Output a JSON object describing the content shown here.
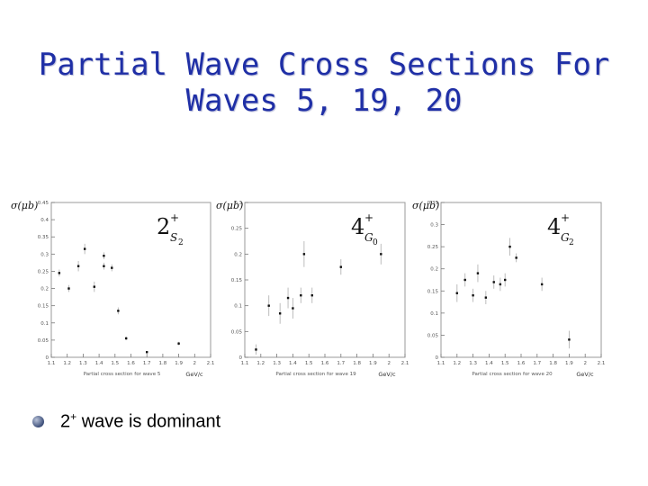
{
  "slide": {
    "title_line1": "Partial Wave Cross Sections For",
    "title_line2": "Waves 5, 19, 20",
    "bullet": {
      "prefix": "2",
      "sup": "+",
      "rest": " wave is dominant"
    }
  },
  "chart_data": [
    {
      "type": "scatter",
      "title": "Partial cross section for wave 5",
      "ylabel": "σ(μb)",
      "xunit": "GeV/c",
      "label": {
        "main": "2",
        "sup": "+",
        "sub": "S",
        "subsub": "2"
      },
      "xlim": [
        1.1,
        2.1
      ],
      "ylim": [
        0,
        0.45
      ],
      "xticks": [
        "1.1",
        "1.2",
        "1.3",
        "1.4",
        "1.5",
        "1.6",
        "1.7",
        "1.8",
        "1.9",
        "2",
        "2.1"
      ],
      "yticks": [
        "0",
        "0.05",
        "0.1",
        "0.15",
        "0.2",
        "0.25",
        "0.3",
        "0.35",
        "0.4",
        "0.45"
      ],
      "points": [
        {
          "x": 1.15,
          "y": 0.245,
          "err": 0.01
        },
        {
          "x": 1.21,
          "y": 0.2,
          "err": 0.01
        },
        {
          "x": 1.27,
          "y": 0.265,
          "err": 0.015
        },
        {
          "x": 1.31,
          "y": 0.315,
          "err": 0.015
        },
        {
          "x": 1.37,
          "y": 0.205,
          "err": 0.015
        },
        {
          "x": 1.43,
          "y": 0.295,
          "err": 0.01
        },
        {
          "x": 1.43,
          "y": 0.265,
          "err": 0.01
        },
        {
          "x": 1.48,
          "y": 0.26,
          "err": 0.01
        },
        {
          "x": 1.52,
          "y": 0.135,
          "err": 0.01
        },
        {
          "x": 1.57,
          "y": 0.055,
          "err": 0.005
        },
        {
          "x": 1.7,
          "y": 0.015,
          "err": 0.003
        },
        {
          "x": 1.9,
          "y": 0.04,
          "err": 0.005
        }
      ]
    },
    {
      "type": "scatter",
      "title": "Partial cross section for wave 19",
      "ylabel": "σ(μb)",
      "xunit": "GeV/c",
      "label": {
        "main": "4",
        "sup": "+",
        "sub": "G",
        "subsub": "0"
      },
      "xlim": [
        1.1,
        2.1
      ],
      "ylim": [
        0,
        0.3
      ],
      "xticks": [
        "1.1",
        "1.2",
        "1.3",
        "1.4",
        "1.5",
        "1.6",
        "1.7",
        "1.8",
        "1.9",
        "2",
        "2.1"
      ],
      "yticks": [
        "0",
        "0.05",
        "0.1",
        "0.15",
        "0.2",
        "0.25",
        "0.3"
      ],
      "points": [
        {
          "x": 1.17,
          "y": 0.015,
          "err": 0.01
        },
        {
          "x": 1.25,
          "y": 0.1,
          "err": 0.02
        },
        {
          "x": 1.32,
          "y": 0.085,
          "err": 0.02
        },
        {
          "x": 1.37,
          "y": 0.115,
          "err": 0.02
        },
        {
          "x": 1.4,
          "y": 0.095,
          "err": 0.02
        },
        {
          "x": 1.45,
          "y": 0.12,
          "err": 0.015
        },
        {
          "x": 1.47,
          "y": 0.2,
          "err": 0.025
        },
        {
          "x": 1.52,
          "y": 0.12,
          "err": 0.015
        },
        {
          "x": 1.7,
          "y": 0.175,
          "err": 0.015
        },
        {
          "x": 1.95,
          "y": 0.2,
          "err": 0.02
        }
      ]
    },
    {
      "type": "scatter",
      "title": "Partial cross section for wave 20",
      "ylabel": "σ(μb)",
      "xunit": "GeV/c",
      "label": {
        "main": "4",
        "sup": "+",
        "sub": "G",
        "subsub": "2"
      },
      "xlim": [
        1.1,
        2.1
      ],
      "ylim": [
        0,
        0.35
      ],
      "xticks": [
        "1.1",
        "1.2",
        "1.3",
        "1.4",
        "1.5",
        "1.6",
        "1.7",
        "1.8",
        "1.9",
        "2",
        "2.1"
      ],
      "yticks": [
        "0",
        "0.05",
        "0.1",
        "0.15",
        "0.2",
        "0.25",
        "0.3",
        "0.35"
      ],
      "points": [
        {
          "x": 1.2,
          "y": 0.145,
          "err": 0.02
        },
        {
          "x": 1.25,
          "y": 0.175,
          "err": 0.015
        },
        {
          "x": 1.3,
          "y": 0.14,
          "err": 0.015
        },
        {
          "x": 1.33,
          "y": 0.19,
          "err": 0.02
        },
        {
          "x": 1.38,
          "y": 0.135,
          "err": 0.015
        },
        {
          "x": 1.43,
          "y": 0.17,
          "err": 0.015
        },
        {
          "x": 1.47,
          "y": 0.165,
          "err": 0.015
        },
        {
          "x": 1.5,
          "y": 0.175,
          "err": 0.015
        },
        {
          "x": 1.53,
          "y": 0.25,
          "err": 0.02
        },
        {
          "x": 1.57,
          "y": 0.225,
          "err": 0.01
        },
        {
          "x": 1.73,
          "y": 0.165,
          "err": 0.015
        },
        {
          "x": 1.9,
          "y": 0.04,
          "err": 0.02
        }
      ]
    }
  ]
}
